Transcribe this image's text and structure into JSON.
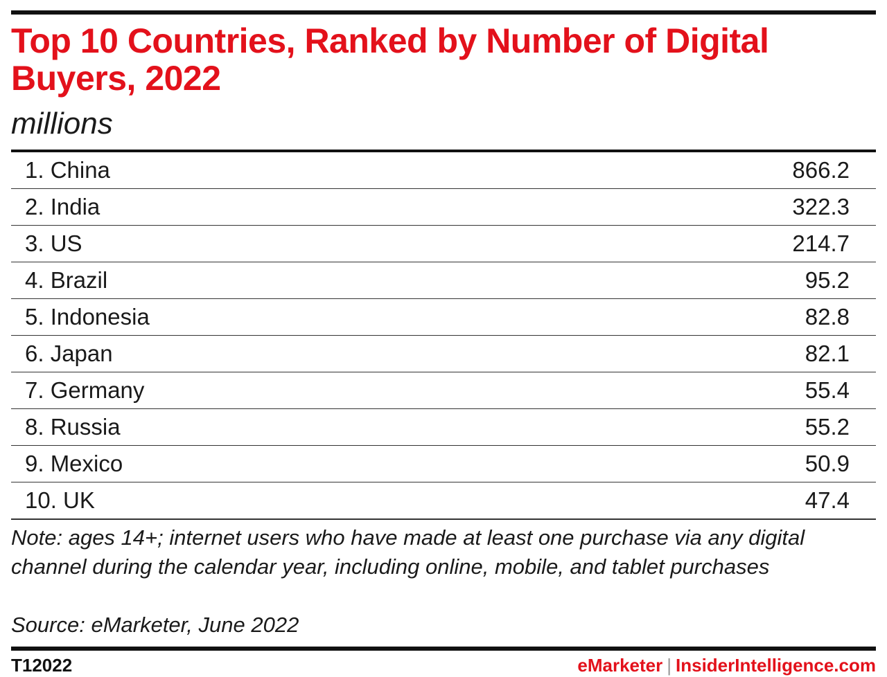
{
  "chart_data": {
    "type": "table",
    "title": "Top 10 Countries, Ranked by Number of Digital Buyers, 2022",
    "subtitle": "millions",
    "categories": [
      "1. China",
      "2. India",
      "3. US",
      "4. Brazil",
      "5. Indonesia",
      "6. Japan",
      "7. Germany",
      "8. Russia",
      "9. Mexico",
      "10. UK"
    ],
    "values": [
      866.2,
      322.3,
      214.7,
      95.2,
      82.8,
      82.1,
      55.4,
      55.2,
      50.9,
      47.4
    ],
    "rows": [
      {
        "country": "1. China",
        "value": "866.2"
      },
      {
        "country": "2. India",
        "value": "322.3"
      },
      {
        "country": "3. US",
        "value": "214.7"
      },
      {
        "country": "4. Brazil",
        "value": "95.2"
      },
      {
        "country": "5. Indonesia",
        "value": "82.8"
      },
      {
        "country": "6. Japan",
        "value": "82.1"
      },
      {
        "country": "7. Germany",
        "value": "55.4"
      },
      {
        "country": "8. Russia",
        "value": "55.2"
      },
      {
        "country": "9. Mexico",
        "value": "50.9"
      },
      {
        "country": "10. UK",
        "value": "47.4"
      }
    ],
    "note": "Note: ages 14+; internet users who have made at least one purchase via any digital channel during the calendar year, including online, mobile, and tablet purchases",
    "source": "Source: eMarketer, June 2022"
  },
  "footer": {
    "chart_id": "T12022",
    "brand_emarketer": "eMarketer",
    "separator": "|",
    "brand_insider": "InsiderIntelligence.com"
  },
  "colors": {
    "accent": "#e3111b",
    "text": "#1a1a1a",
    "rule": "#111111"
  }
}
